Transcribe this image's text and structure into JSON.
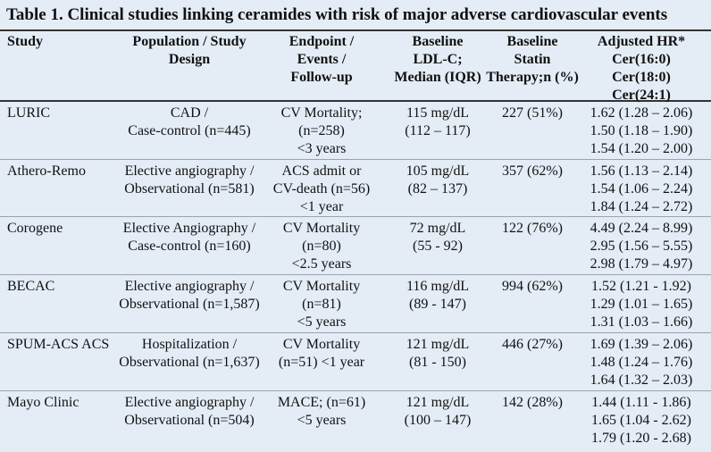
{
  "table": {
    "title": "Table 1.  Clinical studies linking ceramides with risk of major adverse cardiovascular events",
    "headers": [
      [
        "Study"
      ],
      [
        "Population / Study",
        "Design"
      ],
      [
        "Endpoint /",
        "Events /",
        "Follow-up"
      ],
      [
        "Baseline",
        "LDL-C;",
        "Median (IQR)"
      ],
      [
        "Baseline",
        "Statin",
        "Therapy;n (%)"
      ],
      [
        "Adjusted HR*",
        "Cer(16:0)",
        "Cer(18:0)",
        "Cer(24:1)"
      ]
    ],
    "rows": [
      [
        [
          "LURIC"
        ],
        [
          "CAD /",
          "Case-control (n=445)"
        ],
        [
          "CV Mortality;",
          "(n=258)",
          "<3 years"
        ],
        [
          "115 mg/dL",
          "(112 – 117)"
        ],
        [
          "227 (51%)"
        ],
        [
          "1.62 (1.28 – 2.06)",
          "1.50 (1.18 – 1.90)",
          "1.54 (1.20 – 2.00)"
        ]
      ],
      [
        [
          "Athero-Remo"
        ],
        [
          "Elective angiography /",
          "Observational (n=581)"
        ],
        [
          "ACS admit or",
          "CV-death (n=56)",
          "<1 year"
        ],
        [
          "105 mg/dL",
          "(82 – 137)"
        ],
        [
          "357 (62%)"
        ],
        [
          "1.56 (1.13 – 2.14)",
          "1.54 (1.06 – 2.24)",
          "1.84 (1.24 – 2.72)"
        ]
      ],
      [
        [
          "Corogene"
        ],
        [
          "Elective Angiography /",
          "Case-control (n=160)"
        ],
        [
          "CV Mortality",
          "(n=80)",
          "<2.5 years"
        ],
        [
          "72 mg/dL",
          "(55 - 92)"
        ],
        [
          "122 (76%)"
        ],
        [
          "4.49 (2.24 – 8.99)",
          "2.95 (1.56 – 5.55)",
          "2.98 (1.79 – 4.97)"
        ]
      ],
      [
        [
          "BECAC"
        ],
        [
          "Elective angiography /",
          "Observational (n=1,587)"
        ],
        [
          "CV Mortality",
          "(n=81)",
          "<5 years"
        ],
        [
          "116 mg/dL",
          "(89 - 147)"
        ],
        [
          "994 (62%)"
        ],
        [
          "1.52 (1.21 - 1.92)",
          "1.29 (1.01 – 1.65)",
          "1.31 (1.03 – 1.66)"
        ]
      ],
      [
        [
          "SPUM-ACS ACS"
        ],
        [
          "Hospitalization /",
          "Observational (n=1,637)"
        ],
        [
          "CV Mortality",
          "(n=51) <1 year"
        ],
        [
          "121 mg/dL",
          "(81 - 150)"
        ],
        [
          "446 (27%)"
        ],
        [
          "1.69 (1.39 – 2.06)",
          "1.48 (1.24 – 1.76)",
          "1.64 (1.32 – 2.03)"
        ]
      ],
      [
        [
          "Mayo Clinic"
        ],
        [
          "Elective angiography /",
          "Observational (n=504)"
        ],
        [
          "MACE; (n=61)",
          "<5 years"
        ],
        [
          "121 mg/dL",
          "(100 – 147)"
        ],
        [
          "142 (28%)"
        ],
        [
          "1.44 (1.11 - 1.86)",
          "1.65 (1.04 - 2.62)",
          "1.79 (1.20 - 2.68)"
        ]
      ]
    ]
  }
}
